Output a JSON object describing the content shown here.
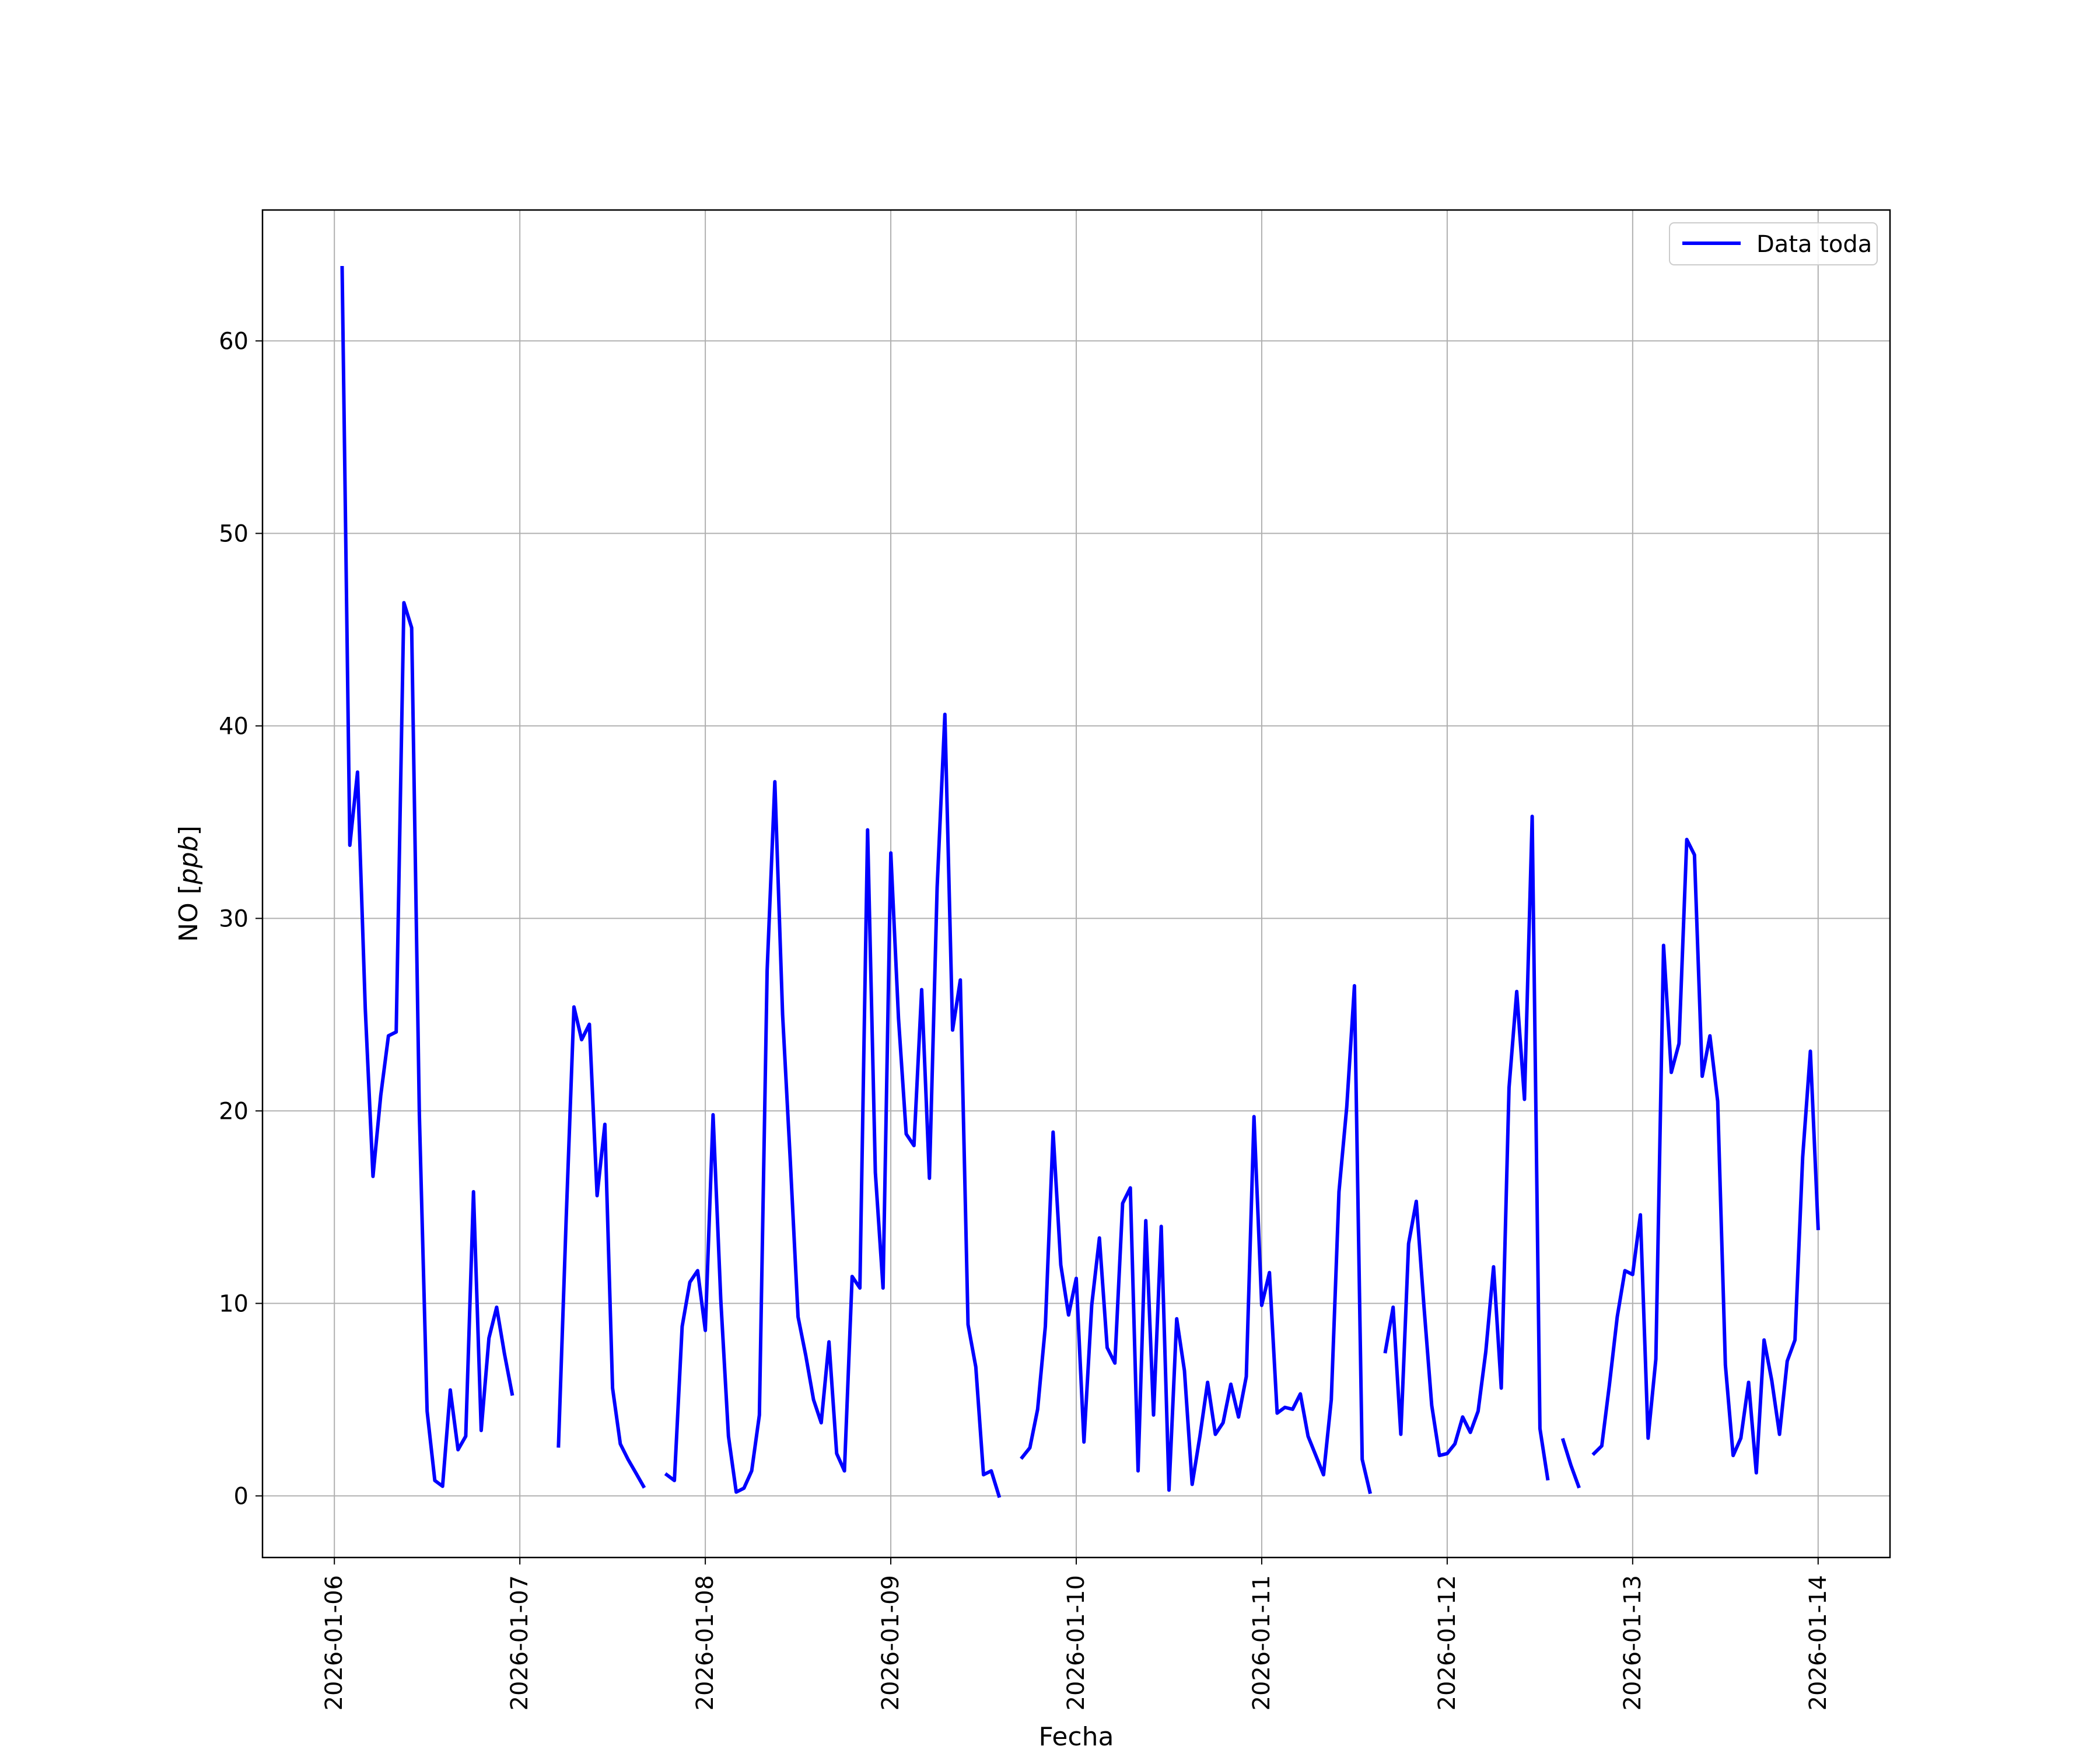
{
  "chart_data": {
    "type": "line",
    "title": "",
    "xlabel": "Fecha",
    "ylabel": "NO [ppb]",
    "ylabel_parts": {
      "prefix": "NO [",
      "unit": "ppb",
      "suffix": "]"
    },
    "ylim": [
      -3.2,
      66.8
    ],
    "xlim": [
      "2026-01-05 14:42",
      "2026-01-14 09:18"
    ],
    "grid": true,
    "legend_position": "top-right",
    "x_tick_labels": [
      "2026-01-06",
      "2026-01-07",
      "2026-01-08",
      "2026-01-09",
      "2026-01-10",
      "2026-01-11",
      "2026-01-12",
      "2026-01-13",
      "2026-01-14"
    ],
    "y_tick_labels": [
      "0",
      "10",
      "20",
      "30",
      "40",
      "50",
      "60"
    ],
    "series": [
      {
        "name": "Data toda",
        "color": "#0000ff",
        "points": [
          [
            "2026-01-06 01:00",
            63.8
          ],
          [
            "2026-01-06 02:00",
            33.8
          ],
          [
            "2026-01-06 03:00",
            37.6
          ],
          [
            "2026-01-06 04:00",
            25.3
          ],
          [
            "2026-01-06 05:00",
            16.6
          ],
          [
            "2026-01-06 06:00",
            20.8
          ],
          [
            "2026-01-06 07:00",
            23.9
          ],
          [
            "2026-01-06 08:00",
            24.1
          ],
          [
            "2026-01-06 09:00",
            46.4
          ],
          [
            "2026-01-06 10:00",
            45.1
          ],
          [
            "2026-01-06 11:00",
            19.8
          ],
          [
            "2026-01-06 12:00",
            4.4
          ],
          [
            "2026-01-06 13:00",
            0.8
          ],
          [
            "2026-01-06 14:00",
            0.5
          ],
          [
            "2026-01-06 15:00",
            5.5
          ],
          [
            "2026-01-06 16:00",
            2.4
          ],
          [
            "2026-01-06 17:00",
            3.1
          ],
          [
            "2026-01-06 18:00",
            15.8
          ],
          [
            "2026-01-06 19:00",
            3.4
          ],
          [
            "2026-01-06 20:00",
            8.2
          ],
          [
            "2026-01-06 21:00",
            9.8
          ],
          [
            "2026-01-06 22:00",
            7.4
          ],
          [
            "2026-01-06 23:00",
            5.3
          ],
          [
            "2026-01-07 00:00",
            null
          ],
          [
            "2026-01-07 01:00",
            null
          ],
          [
            "2026-01-07 02:00",
            null
          ],
          [
            "2026-01-07 03:00",
            null
          ],
          [
            "2026-01-07 04:00",
            null
          ],
          [
            "2026-01-07 05:00",
            2.6
          ],
          [
            "2026-01-07 06:00",
            14.4
          ],
          [
            "2026-01-07 07:00",
            25.4
          ],
          [
            "2026-01-07 08:00",
            23.7
          ],
          [
            "2026-01-07 09:00",
            24.5
          ],
          [
            "2026-01-07 10:00",
            15.6
          ],
          [
            "2026-01-07 11:00",
            19.3
          ],
          [
            "2026-01-07 12:00",
            5.6
          ],
          [
            "2026-01-07 13:00",
            2.7
          ],
          [
            "2026-01-07 14:00",
            1.9
          ],
          [
            "2026-01-07 15:00",
            1.2
          ],
          [
            "2026-01-07 16:00",
            0.5
          ],
          [
            "2026-01-07 17:00",
            null
          ],
          [
            "2026-01-07 18:00",
            null
          ],
          [
            "2026-01-07 19:00",
            1.1
          ],
          [
            "2026-01-07 20:00",
            0.8
          ],
          [
            "2026-01-07 21:00",
            8.8
          ],
          [
            "2026-01-07 22:00",
            11.1
          ],
          [
            "2026-01-07 23:00",
            11.7
          ],
          [
            "2026-01-08 00:00",
            8.6
          ],
          [
            "2026-01-08 01:00",
            19.8
          ],
          [
            "2026-01-08 02:00",
            10.2
          ],
          [
            "2026-01-08 03:00",
            3.1
          ],
          [
            "2026-01-08 04:00",
            0.2
          ],
          [
            "2026-01-08 05:00",
            0.4
          ],
          [
            "2026-01-08 06:00",
            1.3
          ],
          [
            "2026-01-08 07:00",
            4.2
          ],
          [
            "2026-01-08 08:00",
            27.3
          ],
          [
            "2026-01-08 09:00",
            37.1
          ],
          [
            "2026-01-08 10:00",
            25.0
          ],
          [
            "2026-01-08 11:00",
            17.4
          ],
          [
            "2026-01-08 12:00",
            9.3
          ],
          [
            "2026-01-08 13:00",
            7.3
          ],
          [
            "2026-01-08 14:00",
            5.0
          ],
          [
            "2026-01-08 15:00",
            3.8
          ],
          [
            "2026-01-08 16:00",
            8.0
          ],
          [
            "2026-01-08 17:00",
            2.2
          ],
          [
            "2026-01-08 18:00",
            1.3
          ],
          [
            "2026-01-08 19:00",
            11.4
          ],
          [
            "2026-01-08 20:00",
            10.8
          ],
          [
            "2026-01-08 21:00",
            34.6
          ],
          [
            "2026-01-08 22:00",
            16.8
          ],
          [
            "2026-01-08 23:00",
            10.8
          ],
          [
            "2026-01-09 00:00",
            33.4
          ],
          [
            "2026-01-09 01:00",
            24.8
          ],
          [
            "2026-01-09 02:00",
            18.8
          ],
          [
            "2026-01-09 03:00",
            18.2
          ],
          [
            "2026-01-09 04:00",
            26.3
          ],
          [
            "2026-01-09 05:00",
            16.5
          ],
          [
            "2026-01-09 06:00",
            31.6
          ],
          [
            "2026-01-09 07:00",
            40.6
          ],
          [
            "2026-01-09 08:00",
            24.2
          ],
          [
            "2026-01-09 09:00",
            26.8
          ],
          [
            "2026-01-09 10:00",
            8.9
          ],
          [
            "2026-01-09 11:00",
            6.7
          ],
          [
            "2026-01-09 12:00",
            1.1
          ],
          [
            "2026-01-09 13:00",
            1.3
          ],
          [
            "2026-01-09 14:00",
            0.0
          ],
          [
            "2026-01-09 15:00",
            null
          ],
          [
            "2026-01-09 16:00",
            null
          ],
          [
            "2026-01-09 17:00",
            2.0
          ],
          [
            "2026-01-09 18:00",
            2.5
          ],
          [
            "2026-01-09 19:00",
            4.5
          ],
          [
            "2026-01-09 20:00",
            8.8
          ],
          [
            "2026-01-09 21:00",
            18.9
          ],
          [
            "2026-01-09 22:00",
            12.0
          ],
          [
            "2026-01-09 23:00",
            9.4
          ],
          [
            "2026-01-10 00:00",
            11.3
          ],
          [
            "2026-01-10 01:00",
            2.8
          ],
          [
            "2026-01-10 02:00",
            9.9
          ],
          [
            "2026-01-10 03:00",
            13.4
          ],
          [
            "2026-01-10 04:00",
            7.7
          ],
          [
            "2026-01-10 05:00",
            6.9
          ],
          [
            "2026-01-10 06:00",
            15.2
          ],
          [
            "2026-01-10 07:00",
            16.0
          ],
          [
            "2026-01-10 08:00",
            1.3
          ],
          [
            "2026-01-10 09:00",
            14.3
          ],
          [
            "2026-01-10 10:00",
            4.2
          ],
          [
            "2026-01-10 11:00",
            14.0
          ],
          [
            "2026-01-10 12:00",
            0.3
          ],
          [
            "2026-01-10 13:00",
            9.2
          ],
          [
            "2026-01-10 14:00",
            6.5
          ],
          [
            "2026-01-10 15:00",
            0.6
          ],
          [
            "2026-01-10 16:00",
            3.1
          ],
          [
            "2026-01-10 17:00",
            5.9
          ],
          [
            "2026-01-10 18:00",
            3.2
          ],
          [
            "2026-01-10 19:00",
            3.8
          ],
          [
            "2026-01-10 20:00",
            5.8
          ],
          [
            "2026-01-10 21:00",
            4.1
          ],
          [
            "2026-01-10 22:00",
            6.2
          ],
          [
            "2026-01-10 23:00",
            19.7
          ],
          [
            "2026-01-11 00:00",
            9.9
          ],
          [
            "2026-01-11 01:00",
            11.6
          ],
          [
            "2026-01-11 02:00",
            4.3
          ],
          [
            "2026-01-11 03:00",
            4.6
          ],
          [
            "2026-01-11 04:00",
            4.5
          ],
          [
            "2026-01-11 05:00",
            5.3
          ],
          [
            "2026-01-11 06:00",
            3.1
          ],
          [
            "2026-01-11 07:00",
            2.1
          ],
          [
            "2026-01-11 08:00",
            1.1
          ],
          [
            "2026-01-11 09:00",
            5.0
          ],
          [
            "2026-01-11 10:00",
            15.8
          ],
          [
            "2026-01-11 11:00",
            20.2
          ],
          [
            "2026-01-11 12:00",
            26.5
          ],
          [
            "2026-01-11 13:00",
            1.9
          ],
          [
            "2026-01-11 14:00",
            0.2
          ],
          [
            "2026-01-11 15:00",
            null
          ],
          [
            "2026-01-11 16:00",
            7.5
          ],
          [
            "2026-01-11 17:00",
            9.8
          ],
          [
            "2026-01-11 18:00",
            3.2
          ],
          [
            "2026-01-11 19:00",
            13.1
          ],
          [
            "2026-01-11 20:00",
            15.3
          ],
          [
            "2026-01-11 21:00",
            9.8
          ],
          [
            "2026-01-11 22:00",
            4.7
          ],
          [
            "2026-01-11 23:00",
            2.1
          ],
          [
            "2026-01-12 00:00",
            2.2
          ],
          [
            "2026-01-12 01:00",
            2.7
          ],
          [
            "2026-01-12 02:00",
            4.1
          ],
          [
            "2026-01-12 03:00",
            3.3
          ],
          [
            "2026-01-12 04:00",
            4.4
          ],
          [
            "2026-01-12 05:00",
            7.5
          ],
          [
            "2026-01-12 06:00",
            11.9
          ],
          [
            "2026-01-12 07:00",
            5.6
          ],
          [
            "2026-01-12 08:00",
            21.2
          ],
          [
            "2026-01-12 09:00",
            26.2
          ],
          [
            "2026-01-12 10:00",
            20.6
          ],
          [
            "2026-01-12 11:00",
            35.3
          ],
          [
            "2026-01-12 12:00",
            3.5
          ],
          [
            "2026-01-12 13:00",
            0.9
          ],
          [
            "2026-01-12 14:00",
            null
          ],
          [
            "2026-01-12 15:00",
            2.9
          ],
          [
            "2026-01-12 16:00",
            1.6
          ],
          [
            "2026-01-12 17:00",
            0.5
          ],
          [
            "2026-01-12 18:00",
            null
          ],
          [
            "2026-01-12 19:00",
            2.2
          ],
          [
            "2026-01-12 20:00",
            2.6
          ],
          [
            "2026-01-12 21:00",
            5.8
          ],
          [
            "2026-01-12 22:00",
            9.3
          ],
          [
            "2026-01-12 23:00",
            11.7
          ],
          [
            "2026-01-13 00:00",
            11.5
          ],
          [
            "2026-01-13 01:00",
            14.6
          ],
          [
            "2026-01-13 02:00",
            3.0
          ],
          [
            "2026-01-13 03:00",
            7.1
          ],
          [
            "2026-01-13 04:00",
            28.6
          ],
          [
            "2026-01-13 05:00",
            22.0
          ],
          [
            "2026-01-13 06:00",
            23.5
          ],
          [
            "2026-01-13 07:00",
            34.1
          ],
          [
            "2026-01-13 08:00",
            33.3
          ],
          [
            "2026-01-13 09:00",
            21.8
          ],
          [
            "2026-01-13 10:00",
            23.9
          ],
          [
            "2026-01-13 11:00",
            20.5
          ],
          [
            "2026-01-13 12:00",
            6.8
          ],
          [
            "2026-01-13 13:00",
            2.1
          ],
          [
            "2026-01-13 14:00",
            3.0
          ],
          [
            "2026-01-13 15:00",
            5.9
          ],
          [
            "2026-01-13 16:00",
            1.2
          ],
          [
            "2026-01-13 17:00",
            8.1
          ],
          [
            "2026-01-13 18:00",
            6.0
          ],
          [
            "2026-01-13 19:00",
            3.2
          ],
          [
            "2026-01-13 20:00",
            7.0
          ],
          [
            "2026-01-13 21:00",
            8.1
          ],
          [
            "2026-01-13 22:00",
            17.6
          ],
          [
            "2026-01-13 23:00",
            23.1
          ],
          [
            "2026-01-14 00:00",
            13.9
          ]
        ]
      }
    ]
  }
}
